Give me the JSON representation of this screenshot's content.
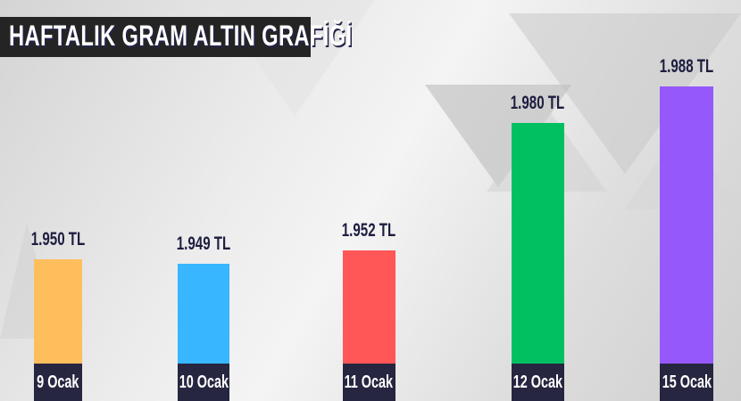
{
  "chart_data": {
    "type": "bar",
    "title": "HAFTALIK GRAM ALTIN GRAFİĞİ",
    "categories": [
      "9 Ocak",
      "10 Ocak",
      "11 Ocak",
      "12 Ocak",
      "15 Ocak"
    ],
    "values": [
      1950,
      1949,
      1952,
      1980,
      1988
    ],
    "data_labels": [
      "1.950 TL",
      "1.949 TL",
      "1.952 TL",
      "1.980 TL",
      "1.988 TL"
    ],
    "colors": [
      "#FFBE5C",
      "#38B6FF",
      "#FF5757",
      "#00C062",
      "#9558FA"
    ],
    "label_bg": "#262640",
    "xlabel": "",
    "ylabel": "",
    "grid": false,
    "legend": "none"
  }
}
